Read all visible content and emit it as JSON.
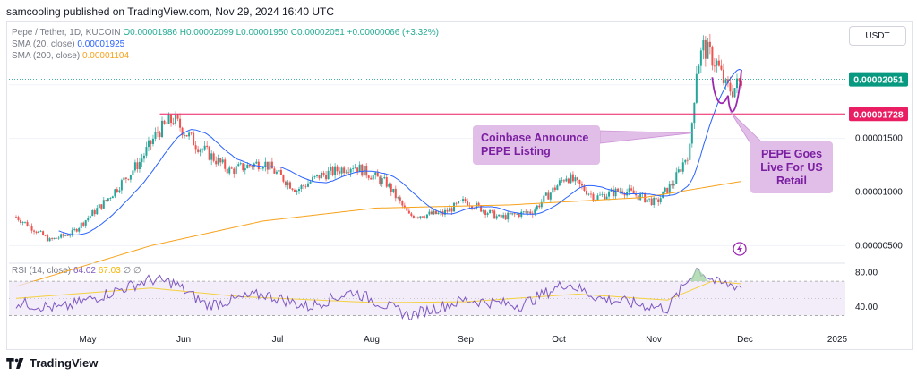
{
  "header": {
    "text": "samcooling published on TradingView.com, Nov 29, 2024 16:40 UTC"
  },
  "legend": {
    "symbol": "Pepe / Tether, 1D, KUCOIN",
    "ohlc": [
      "O0.00001986",
      "H0.00002099",
      "L0.00001950",
      "C0.00002051",
      "+0.00000066 (+3.32%)"
    ],
    "sma20_label": "SMA (20, close)",
    "sma20_value": "0.00001925",
    "sma200_label": "SMA (200, close)",
    "sma200_value": "0.00001104"
  },
  "rsi_legend": {
    "label": "RSI (14, close)",
    "value1": "64.02",
    "value2": "67.03",
    "ind": "∅ ∅"
  },
  "currency_button": "USDT",
  "footer": {
    "brand": "TradingView"
  },
  "annotations": {
    "coinbase": [
      "Coinbase Announce",
      "PEPE Listing"
    ],
    "pepe": [
      "PEPE Goes",
      "Live For US",
      "Retail"
    ]
  },
  "colors": {
    "up": "#26a69a",
    "down": "#ef5350",
    "sma20": "#2962ff",
    "sma200": "#f7a21b",
    "resistance": "#e91e63",
    "rsi": "#7e57c2",
    "rsi_ma": "#f4d03f",
    "annotation_fill": "#e1bee7",
    "pattern": "#9c27b0",
    "last_price": "#089981"
  },
  "chart_data": {
    "type": "candlestick",
    "title": "Pepe / Tether, 1D, KUCOIN",
    "x_ticks": [
      "May",
      "Jun",
      "Jul",
      "Aug",
      "Sep",
      "Oct",
      "Nov",
      "Dec",
      "2025"
    ],
    "y_ticks": [
      "0.00000500",
      "0.00001000",
      "0.00001500"
    ],
    "price_range": [
      3.7e-06,
      2.54e-05
    ],
    "horizontal_line": {
      "label": "0.00001728",
      "value": 1.728e-05
    },
    "last_price": {
      "label": "0.00002051",
      "value": 2.051e-05
    },
    "anchors": [
      {
        "x": 0,
        "y": 7.7e-06
      },
      {
        "x": 15,
        "y": 5.5e-06
      },
      {
        "x": 25,
        "y": 6.2e-06
      },
      {
        "x": 40,
        "y": 9.2e-06
      },
      {
        "x": 55,
        "y": 1.28e-05
      },
      {
        "x": 63,
        "y": 1.56e-05
      },
      {
        "x": 70,
        "y": 1.68e-05
      },
      {
        "x": 80,
        "y": 1.45e-05
      },
      {
        "x": 95,
        "y": 1.2e-05
      },
      {
        "x": 110,
        "y": 1.28e-05
      },
      {
        "x": 125,
        "y": 1.02e-05
      },
      {
        "x": 135,
        "y": 1.15e-05
      },
      {
        "x": 150,
        "y": 1.25e-05
      },
      {
        "x": 165,
        "y": 1.08e-05
      },
      {
        "x": 175,
        "y": 7.8e-06
      },
      {
        "x": 190,
        "y": 8e-06
      },
      {
        "x": 200,
        "y": 9.2e-06
      },
      {
        "x": 215,
        "y": 7.6e-06
      },
      {
        "x": 230,
        "y": 8.2e-06
      },
      {
        "x": 245,
        "y": 1.15e-05
      },
      {
        "x": 258,
        "y": 9.5e-06
      },
      {
        "x": 270,
        "y": 1.02e-05
      },
      {
        "x": 285,
        "y": 9e-06
      },
      {
        "x": 293,
        "y": 1.1e-05
      },
      {
        "x": 300,
        "y": 1.4e-05
      },
      {
        "x": 303,
        "y": 2.15e-05
      },
      {
        "x": 306,
        "y": 2.35e-05
      },
      {
        "x": 312,
        "y": 2.2e-05
      },
      {
        "x": 316,
        "y": 1.98e-05
      },
      {
        "x": 319,
        "y": 1.95e-05
      },
      {
        "x": 323,
        "y": 2.05e-05
      }
    ],
    "sma200": [
      {
        "x": 0,
        "y": 1.2e-06
      },
      {
        "x": 60,
        "y": 5e-06
      },
      {
        "x": 110,
        "y": 7.3e-06
      },
      {
        "x": 160,
        "y": 8.5e-06
      },
      {
        "x": 220,
        "y": 8.8e-06
      },
      {
        "x": 280,
        "y": 9.5e-06
      },
      {
        "x": 323,
        "y": 1.1e-05
      }
    ],
    "rsi": {
      "levels": {
        "upper": 70,
        "lower": 30,
        "middle": 50
      },
      "y_ticks": [
        "80.00",
        "40.00"
      ],
      "anchors": [
        {
          "x": 0,
          "y": 45
        },
        {
          "x": 20,
          "y": 38
        },
        {
          "x": 40,
          "y": 55
        },
        {
          "x": 60,
          "y": 72
        },
        {
          "x": 70,
          "y": 68
        },
        {
          "x": 85,
          "y": 42
        },
        {
          "x": 110,
          "y": 55
        },
        {
          "x": 130,
          "y": 40
        },
        {
          "x": 150,
          "y": 58
        },
        {
          "x": 175,
          "y": 30
        },
        {
          "x": 200,
          "y": 48
        },
        {
          "x": 225,
          "y": 42
        },
        {
          "x": 245,
          "y": 68
        },
        {
          "x": 260,
          "y": 50
        },
        {
          "x": 290,
          "y": 38
        },
        {
          "x": 303,
          "y": 85
        },
        {
          "x": 312,
          "y": 68
        },
        {
          "x": 323,
          "y": 64
        }
      ],
      "ma_anchors": [
        {
          "x": 0,
          "y": 50
        },
        {
          "x": 60,
          "y": 62
        },
        {
          "x": 100,
          "y": 52
        },
        {
          "x": 160,
          "y": 45
        },
        {
          "x": 200,
          "y": 46
        },
        {
          "x": 250,
          "y": 55
        },
        {
          "x": 290,
          "y": 48
        },
        {
          "x": 310,
          "y": 70
        },
        {
          "x": 323,
          "y": 67
        }
      ]
    }
  }
}
